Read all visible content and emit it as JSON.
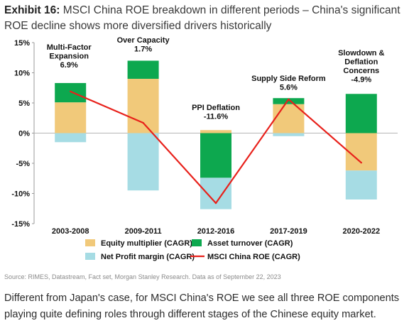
{
  "header": {
    "exhibit": "Exhibit 16:",
    "title": "MSCI China ROE breakdown in different periods – China's significant ROE decline shows more diversified drivers historically"
  },
  "chart_data": {
    "type": "bar",
    "stacked": true,
    "categories": [
      "2003-2008",
      "2009-2011",
      "2012-2016",
      "2017-2019",
      "2020-2022"
    ],
    "ylim": [
      -15,
      15
    ],
    "yticks": [
      15,
      10,
      5,
      0,
      -5,
      -10,
      -15
    ],
    "ytick_labels": [
      "15%",
      "10%",
      "5%",
      "0%",
      "-5%",
      "-10%",
      "-15%"
    ],
    "series": [
      {
        "name": "Equity multiplier  (CAGR)",
        "type": "bar",
        "color": "#F1C97A",
        "values": [
          5.1,
          9.0,
          0.5,
          4.8,
          -6.2
        ]
      },
      {
        "name": "Asset turnover  (CAGR)",
        "type": "bar",
        "color": "#0DA84F",
        "values": [
          3.2,
          3.0,
          -7.4,
          1.0,
          6.5
        ]
      },
      {
        "name": "Net Profit margin  (CAGR)",
        "type": "bar",
        "color": "#A6DCE4",
        "values": [
          -1.5,
          -9.5,
          -5.2,
          -0.5,
          -4.8
        ]
      },
      {
        "name": "MSCI China ROE (CAGR)",
        "type": "line",
        "color": "#E8211B",
        "values": [
          6.9,
          1.7,
          -11.6,
          5.6,
          -4.9
        ]
      }
    ],
    "annotations": [
      {
        "lines": [
          "Multi-Factor",
          "Expansion",
          "6.9%"
        ]
      },
      {
        "lines": [
          "Over Capacity",
          "1.7%"
        ]
      },
      {
        "lines": [
          "PPI Deflation",
          "-11.6%"
        ]
      },
      {
        "lines": [
          "Supply Side Reform",
          "5.6%"
        ]
      },
      {
        "lines": [
          "Slowdown &",
          "Deflation",
          "Concerns",
          "-4.9%"
        ]
      }
    ],
    "legend_position": "bottom",
    "grid": false
  },
  "footer": {
    "source": "Source: RIMES, Datastream, Fact set, Morgan Stanley Research. Data as of September 22, 2023",
    "caption": "Different from Japan's case, for MSCI China's ROE we see all three ROE components playing quite defining roles through different stages of the Chinese equity market."
  }
}
